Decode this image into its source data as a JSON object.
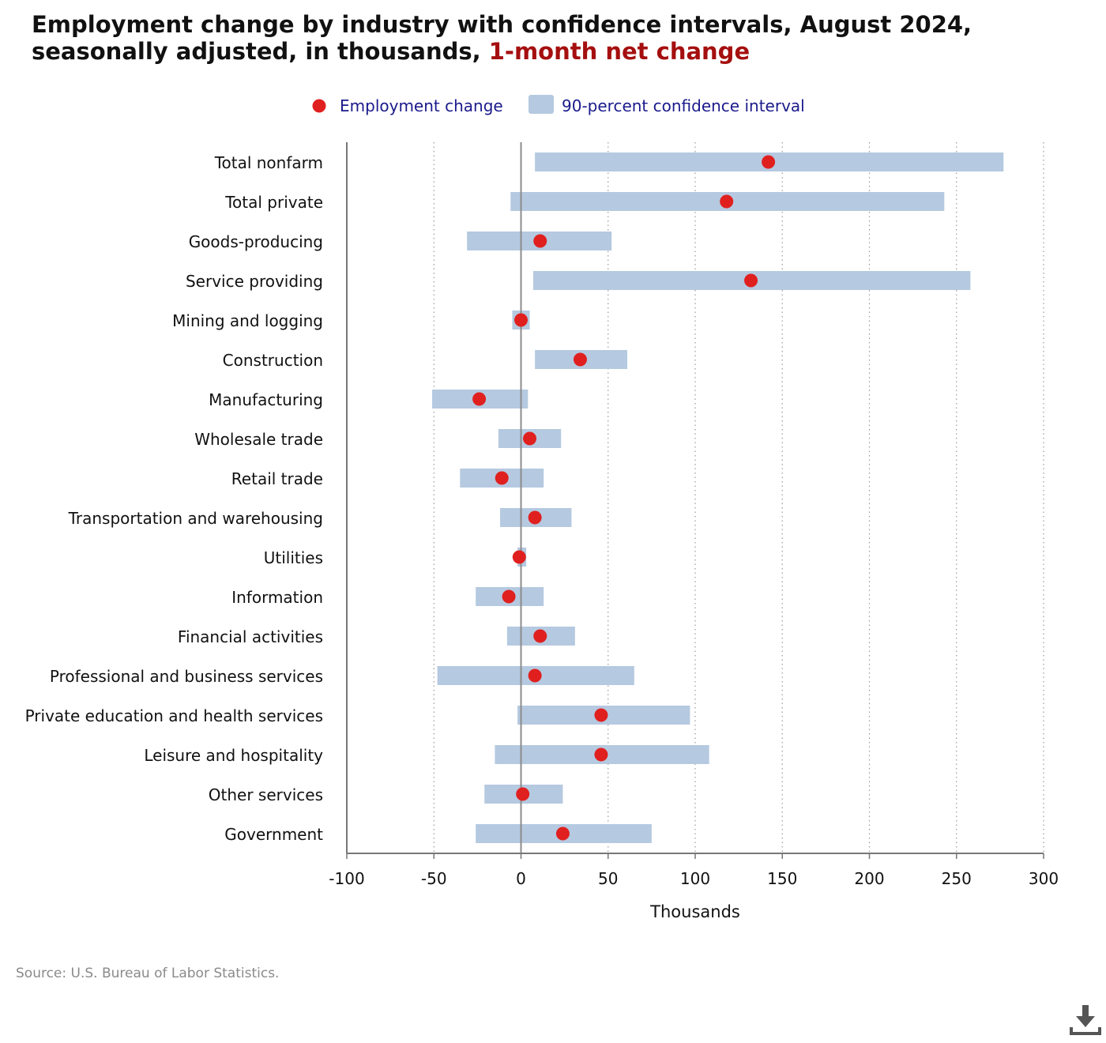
{
  "title": {
    "main": "Employment change by industry with confidence intervals, August 2024, seasonally adjusted, in thousands,",
    "highlight": "1-month net change"
  },
  "colors": {
    "point": "#e0201f",
    "interval": "#b5c9e0",
    "legend_text": "#1a1a8c",
    "accent": "#a50f0f"
  },
  "source": "Source: U.S. Bureau of Labor Statistics.",
  "download_icon": "download-icon",
  "chart_data": {
    "type": "scatter",
    "subtype": "dot-with-confidence-interval",
    "xlabel": "Thousands",
    "xlim": [
      -100,
      300
    ],
    "xticks": [
      -100,
      -50,
      0,
      50,
      100,
      150,
      200,
      250,
      300
    ],
    "grid": "vertical dotted",
    "legend_position": "top",
    "legend": [
      "Employment change",
      "90-percent confidence interval"
    ],
    "categories": [
      "Total nonfarm",
      "Total private",
      "Goods-producing",
      "Service providing",
      "Mining and logging",
      "Construction",
      "Manufacturing",
      "Wholesale trade",
      "Retail trade",
      "Transportation and warehousing",
      "Utilities",
      "Information",
      "Financial activities",
      "Professional and business services",
      "Private education and health services",
      "Leisure and hospitality",
      "Other services",
      "Government"
    ],
    "values": [
      142,
      118,
      11,
      132,
      0,
      34,
      -24,
      5,
      -11,
      8,
      -1,
      -7,
      11,
      8,
      46,
      46,
      1,
      24
    ],
    "ci_low": [
      8,
      -6,
      -31,
      7,
      -5,
      8,
      -51,
      -13,
      -35,
      -12,
      -2,
      -26,
      -8,
      -48,
      -2,
      -15,
      -21,
      -26
    ],
    "ci_high": [
      277,
      243,
      52,
      258,
      5,
      61,
      4,
      23,
      13,
      29,
      3,
      13,
      31,
      65,
      97,
      108,
      24,
      75
    ]
  }
}
